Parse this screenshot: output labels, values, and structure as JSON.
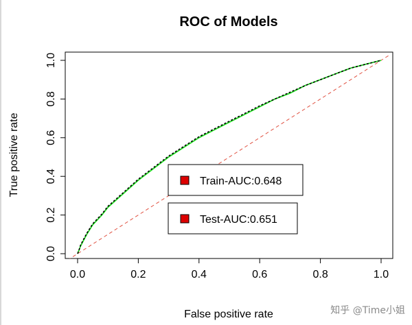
{
  "chart_data": {
    "type": "line",
    "title": "ROC of Models",
    "xlabel": "False positive rate",
    "ylabel": "True positive rate",
    "xlim": [
      0.0,
      1.0
    ],
    "ylim": [
      0.0,
      1.0
    ],
    "xticks": [
      "0.0",
      "0.2",
      "0.4",
      "0.6",
      "0.8",
      "1.0"
    ],
    "yticks": [
      "0.0",
      "0.2",
      "0.4",
      "0.6",
      "0.8",
      "1.0"
    ],
    "grid": false,
    "series": [
      {
        "name": "Train-AUC:0.648",
        "color": "#22dd22",
        "style": "solid",
        "x": [
          0.0,
          0.005,
          0.01,
          0.02,
          0.03,
          0.05,
          0.08,
          0.1,
          0.15,
          0.2,
          0.25,
          0.3,
          0.35,
          0.4,
          0.45,
          0.5,
          0.55,
          0.6,
          0.65,
          0.7,
          0.75,
          0.8,
          0.85,
          0.9,
          0.95,
          1.0
        ],
        "y": [
          0.0,
          0.02,
          0.04,
          0.07,
          0.1,
          0.15,
          0.2,
          0.24,
          0.31,
          0.38,
          0.44,
          0.5,
          0.55,
          0.6,
          0.64,
          0.68,
          0.72,
          0.76,
          0.8,
          0.83,
          0.87,
          0.9,
          0.93,
          0.96,
          0.98,
          1.0
        ]
      },
      {
        "name": "Test-AUC:0.651",
        "color": "#000000",
        "style": "dashed",
        "x": [
          0.0,
          0.005,
          0.01,
          0.02,
          0.03,
          0.05,
          0.08,
          0.1,
          0.15,
          0.2,
          0.25,
          0.3,
          0.35,
          0.4,
          0.45,
          0.5,
          0.55,
          0.6,
          0.65,
          0.7,
          0.75,
          0.8,
          0.85,
          0.9,
          0.95,
          1.0
        ],
        "y": [
          0.0,
          0.02,
          0.045,
          0.075,
          0.105,
          0.155,
          0.205,
          0.245,
          0.315,
          0.385,
          0.445,
          0.505,
          0.555,
          0.605,
          0.645,
          0.685,
          0.725,
          0.765,
          0.8,
          0.835,
          0.87,
          0.9,
          0.93,
          0.96,
          0.98,
          1.0
        ]
      },
      {
        "name": "",
        "color": "#e05040",
        "style": "dashed",
        "x": [
          0.0,
          1.0
        ],
        "y": [
          0.0,
          1.0
        ]
      }
    ],
    "legend": {
      "placement": "center-right",
      "marker_color": "#dd0000",
      "entries": [
        "Train-AUC:0.648",
        "Test-AUC:0.651"
      ]
    }
  },
  "watermark": "知乎 @Time小姐"
}
